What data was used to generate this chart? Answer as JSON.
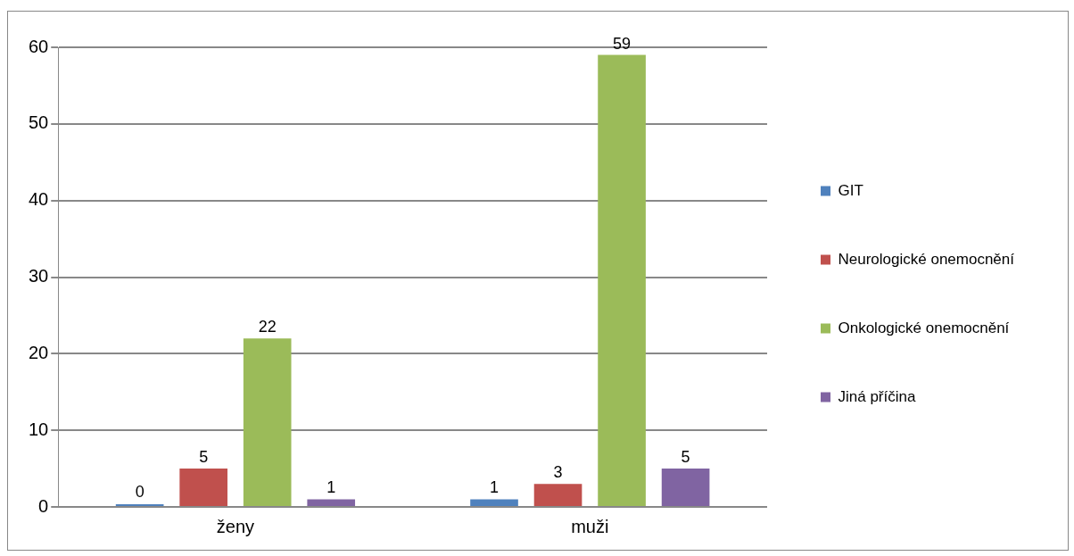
{
  "chart_data": {
    "type": "bar",
    "categories": [
      "ženy",
      "muži"
    ],
    "series": [
      {
        "name": "GIT",
        "color": "#4f81bd",
        "values": [
          0,
          1
        ]
      },
      {
        "name": "Neurologické onemocnění",
        "color": "#c0504d",
        "values": [
          5,
          3
        ]
      },
      {
        "name": "Onkologické onemocnění",
        "color": "#9bbb59",
        "values": [
          22,
          59
        ]
      },
      {
        "name": "Jiná příčina",
        "color": "#8064a2",
        "values": [
          1,
          5
        ]
      }
    ],
    "ylim": [
      0,
      60
    ],
    "yticks": [
      0,
      10,
      20,
      30,
      40,
      50,
      60
    ],
    "grid": "y",
    "legend": "right",
    "data_labels": true
  }
}
